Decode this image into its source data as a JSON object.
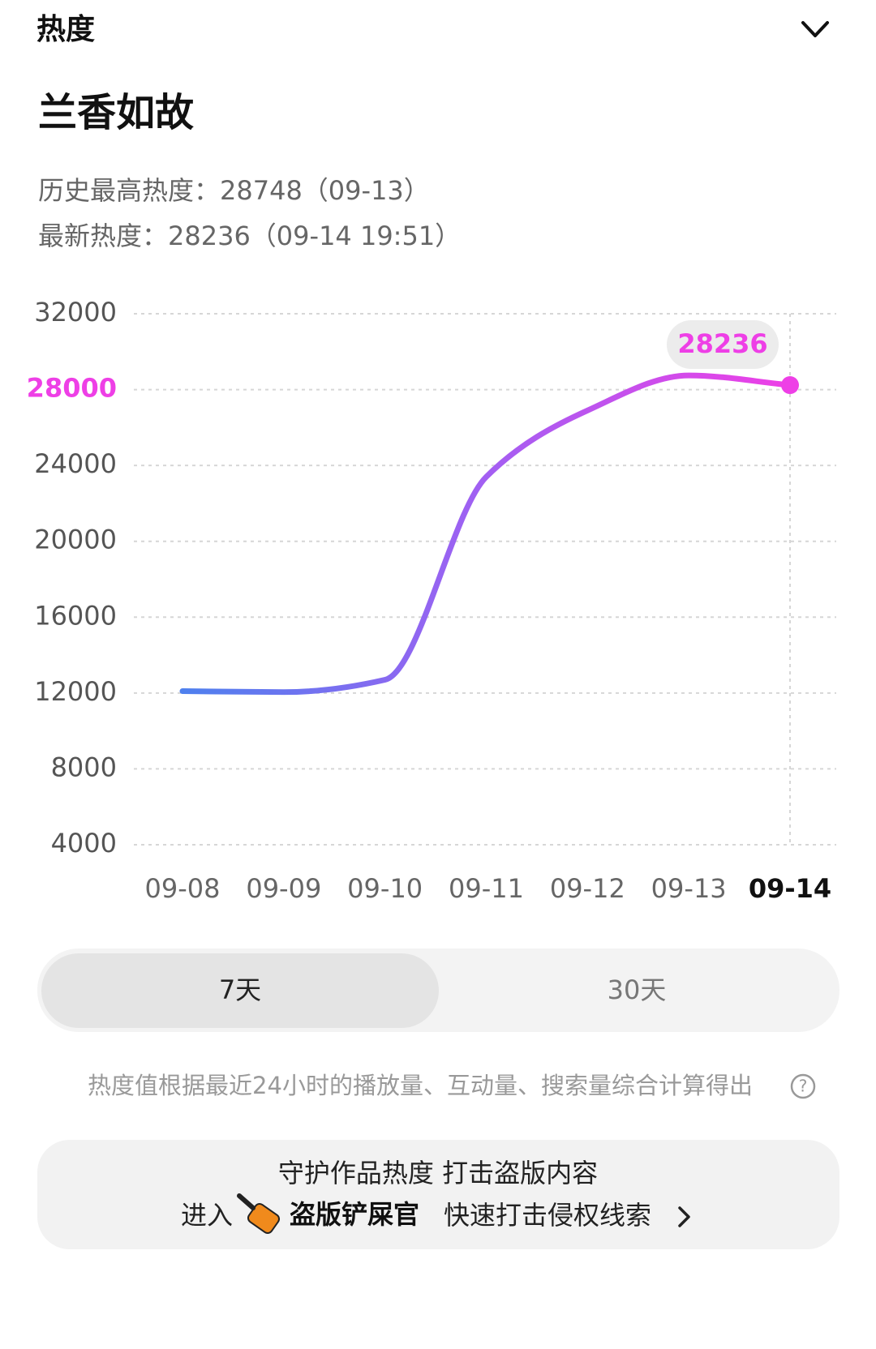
{
  "header": {
    "title": "热度"
  },
  "work_title": "兰香如故",
  "stats": [
    "历史最高热度：28748（09-13）",
    "最新热度：28236（09-14 19:51）"
  ],
  "chart_data": {
    "type": "line",
    "categories": [
      "09-08",
      "09-09",
      "09-10",
      "09-11",
      "09-12",
      "09-13",
      "09-14"
    ],
    "values": [
      12100,
      12050,
      12700,
      23400,
      26900,
      28748,
      28236
    ],
    "ylim": [
      4000,
      32000
    ],
    "yticks": [
      4000,
      8000,
      12000,
      16000,
      20000,
      24000,
      28000,
      32000
    ],
    "grid": true,
    "colors": [
      "#4e80ee",
      "#a35ff2",
      "#ee3fe6"
    ]
  },
  "tabs": [
    "7天",
    "30天"
  ],
  "note": "热度值根据最近24小时的播放量、互动量、搜索量综合计算得出",
  "banner": {
    "line1": "守护作品热度 打击盗版内容",
    "prefix": "进入",
    "brand": "盗版铲屎官",
    "suffix": "快速打击侵权线索"
  }
}
